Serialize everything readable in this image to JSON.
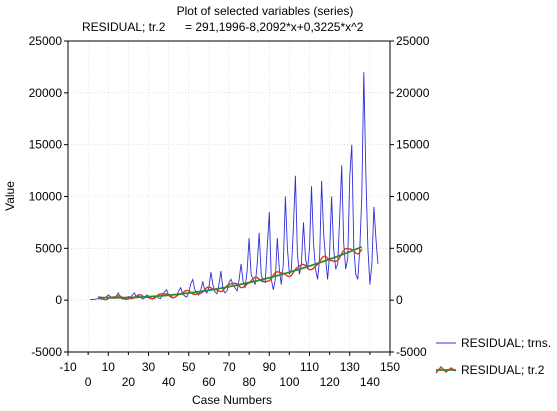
{
  "chart_data": {
    "type": "line",
    "title": "Plot of selected variables (series)",
    "subtitle_left": "RESIDUAL; tr.2",
    "subtitle_right": "= 291,1996-8,2092*x+0,3225*x^2",
    "xlabel": "Case Numbers",
    "ylabel": "Value",
    "xlim": [
      -10,
      150
    ],
    "ylim": [
      -5000,
      25000
    ],
    "x_ticks": [
      -10,
      10,
      30,
      50,
      70,
      90,
      110,
      130,
      150
    ],
    "x_ticks_minor": [
      0,
      20,
      40,
      60,
      80,
      100,
      120,
      140
    ],
    "y_ticks": [
      -5000,
      0,
      5000,
      10000,
      15000,
      20000,
      25000
    ],
    "y_tick_labels": [
      "-5000",
      "0",
      "5000",
      "10000",
      "15000",
      "20000",
      "25000"
    ],
    "grid": true,
    "legend_position": "bottom-right",
    "series": [
      {
        "name": "RESIDUAL; trns.",
        "color": "#3030d8",
        "x": [
          1,
          2,
          3,
          4,
          5,
          6,
          7,
          8,
          9,
          10,
          11,
          12,
          13,
          14,
          15,
          16,
          17,
          18,
          19,
          20,
          21,
          22,
          23,
          24,
          25,
          26,
          27,
          28,
          29,
          30,
          31,
          32,
          33,
          34,
          35,
          36,
          37,
          38,
          39,
          40,
          41,
          42,
          43,
          44,
          45,
          46,
          47,
          48,
          49,
          50,
          51,
          52,
          53,
          54,
          55,
          56,
          57,
          58,
          59,
          60,
          61,
          62,
          63,
          64,
          65,
          66,
          67,
          68,
          69,
          70,
          71,
          72,
          73,
          74,
          75,
          76,
          77,
          78,
          79,
          80,
          81,
          82,
          83,
          84,
          85,
          86,
          87,
          88,
          89,
          90,
          91,
          92,
          93,
          94,
          95,
          96,
          97,
          98,
          99,
          100,
          101,
          102,
          103,
          104,
          105,
          106,
          107,
          108,
          109,
          110,
          111,
          112,
          113,
          114,
          115,
          116,
          117,
          118,
          119,
          120,
          121,
          122,
          123,
          124,
          125,
          126,
          127,
          128,
          129,
          130,
          131,
          132,
          133,
          134,
          135,
          136,
          137,
          138,
          139,
          140,
          141,
          142,
          143,
          144
        ],
        "values": [
          40,
          60,
          80,
          100,
          150,
          120,
          90,
          200,
          300,
          500,
          350,
          250,
          150,
          400,
          700,
          300,
          100,
          200,
          250,
          350,
          300,
          500,
          700,
          250,
          400,
          300,
          100,
          200,
          500,
          400,
          150,
          100,
          300,
          400,
          200,
          150,
          600,
          800,
          1000,
          500,
          300,
          200,
          300,
          400,
          900,
          1200,
          600,
          400,
          300,
          700,
          1600,
          2000,
          1000,
          700,
          500,
          1000,
          1800,
          900,
          700,
          1200,
          2700,
          1500,
          800,
          600,
          1500,
          2800,
          1000,
          700,
          900,
          1700,
          2000,
          1500,
          1200,
          900,
          2000,
          3500,
          1800,
          1200,
          2800,
          6000,
          2500,
          2000,
          1500,
          3500,
          6500,
          2500,
          1800,
          1700,
          5000,
          8500,
          2000,
          1000,
          2000,
          6000,
          3000,
          1500,
          3500,
          10000,
          5000,
          2500,
          3000,
          7000,
          12000,
          4500,
          2500,
          3500,
          7500,
          4000,
          3000,
          5000,
          11000,
          5500,
          3000,
          2000,
          4000,
          11500,
          6500,
          4000,
          2000,
          4500,
          10000,
          5000,
          3000,
          3500,
          8000,
          13000,
          5500,
          3000,
          4000,
          12000,
          15000,
          5000,
          2500,
          2000,
          5000,
          10000,
          22000,
          12000,
          5000,
          1500,
          3500,
          9000,
          6000,
          3500
        ]
      },
      {
        "name": "RESIDUAL; tr.2",
        "color": "#2a8c2a",
        "marker_color": "#e03030",
        "x_start": 5,
        "x_end": 136,
        "formula": "291,1996-8,2092*x+0,3225*x^2"
      }
    ]
  }
}
